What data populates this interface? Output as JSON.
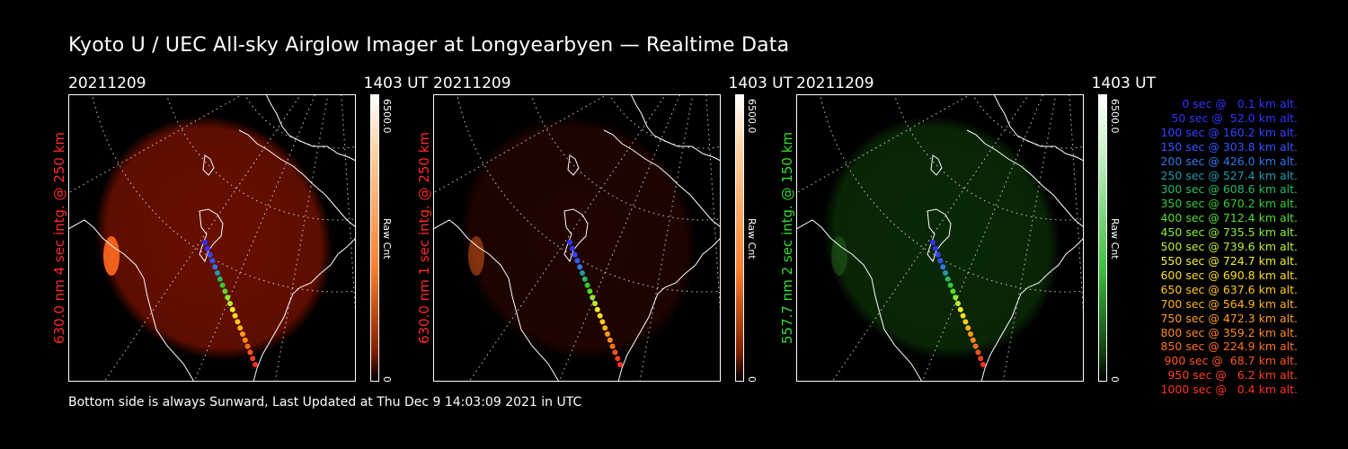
{
  "title": "Kyoto U / UEC All-sky Airglow Imager at Longyearbyen — Realtime Data",
  "footer": "Bottom side is always Sunward, Last Updated at Thu Dec  9 14:03:09 2021 in UTC",
  "panels": [
    {
      "date": "20211209",
      "time": "1403 UT",
      "ylabel": "630.0 nm 4 sec intg. @ 250 km",
      "label_color": "#ff2a2a",
      "cbar_max": "6500.0",
      "cbar_min": "0",
      "cbar_unit": "Raw Cnt",
      "glow": "#8a1400",
      "glow_opacity": 0.75
    },
    {
      "date": "20211209",
      "time": "1403 UT",
      "ylabel": "630.0 nm 1 sec intg. @ 250 km",
      "label_color": "#ff2a2a",
      "cbar_max": "6500.0",
      "cbar_min": "0",
      "cbar_unit": "Raw Cnt",
      "glow": "#3a0800",
      "glow_opacity": 0.55
    },
    {
      "date": "20211209",
      "time": "1403 UT",
      "ylabel": "557.7 nm 2 sec intg. @ 150 km",
      "label_color": "#33dd33",
      "cbar_max": "6500.0",
      "cbar_min": "0",
      "cbar_unit": "Raw Cnt",
      "glow": "#0f3a0a",
      "glow_opacity": 0.7
    }
  ],
  "legend": [
    {
      "text": "0 sec @   0.1 km alt.",
      "color": "#3333ff"
    },
    {
      "text": "50 sec @  52.0 km alt.",
      "color": "#3333ff"
    },
    {
      "text": "100 sec @ 160.2 km alt.",
      "color": "#3344ff"
    },
    {
      "text": "150 sec @ 303.8 km alt.",
      "color": "#3355ff"
    },
    {
      "text": "200 sec @ 426.0 km alt.",
      "color": "#3377ee"
    },
    {
      "text": "250 sec @ 527.4 km alt.",
      "color": "#2299aa"
    },
    {
      "text": "300 sec @ 608.6 km alt.",
      "color": "#22bb66"
    },
    {
      "text": "350 sec @ 670.2 km alt.",
      "color": "#33cc33"
    },
    {
      "text": "400 sec @ 712.4 km alt.",
      "color": "#55dd33"
    },
    {
      "text": "450 sec @ 735.5 km alt.",
      "color": "#88ee33"
    },
    {
      "text": "500 sec @ 739.6 km alt.",
      "color": "#bbee33"
    },
    {
      "text": "550 sec @ 724.7 km alt.",
      "color": "#eeee33"
    },
    {
      "text": "600 sec @ 690.8 km alt.",
      "color": "#ffdd22"
    },
    {
      "text": "650 sec @ 637.6 km alt.",
      "color": "#ffc822"
    },
    {
      "text": "700 sec @ 564.9 km alt.",
      "color": "#ffb020"
    },
    {
      "text": "750 sec @ 472.3 km alt.",
      "color": "#ff9a20"
    },
    {
      "text": "800 sec @ 359.2 km alt.",
      "color": "#ff8820"
    },
    {
      "text": "850 sec @ 224.9 km alt.",
      "color": "#ff7020"
    },
    {
      "text": "900 sec @  68.7 km alt.",
      "color": "#ff5520"
    },
    {
      "text": "950 sec @   6.2 km alt.",
      "color": "#ff4020"
    },
    {
      "text": "1000 sec @   0.4 km alt.",
      "color": "#ff3020"
    }
  ]
}
